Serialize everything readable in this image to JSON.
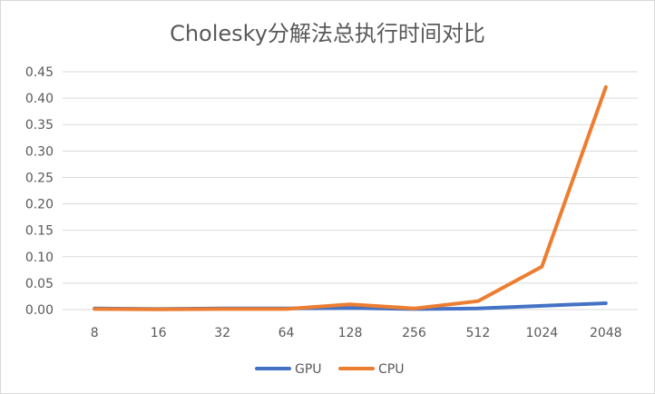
{
  "chart_data": {
    "type": "line",
    "title": "Cholesky分解法总执行时间对比",
    "xlabel": "",
    "ylabel": "",
    "categories": [
      "8",
      "16",
      "32",
      "64",
      "128",
      "256",
      "512",
      "1024",
      "2048"
    ],
    "y_ticks": [
      "0.00",
      "0.05",
      "0.10",
      "0.15",
      "0.20",
      "0.25",
      "0.30",
      "0.35",
      "0.40",
      "0.45"
    ],
    "ylim": [
      0,
      0.45
    ],
    "grid": true,
    "legend_position": "bottom",
    "series": [
      {
        "name": "GPU",
        "color": "#4472C4",
        "values": [
          0.002,
          0.001,
          0.002,
          0.002,
          0.003,
          0.001,
          0.002,
          0.007,
          0.012
        ]
      },
      {
        "name": "CPU",
        "color": "#ED7D31",
        "values": [
          0.001,
          0.0005,
          0.001,
          0.001,
          0.01,
          0.002,
          0.016,
          0.081,
          0.421
        ]
      }
    ]
  }
}
